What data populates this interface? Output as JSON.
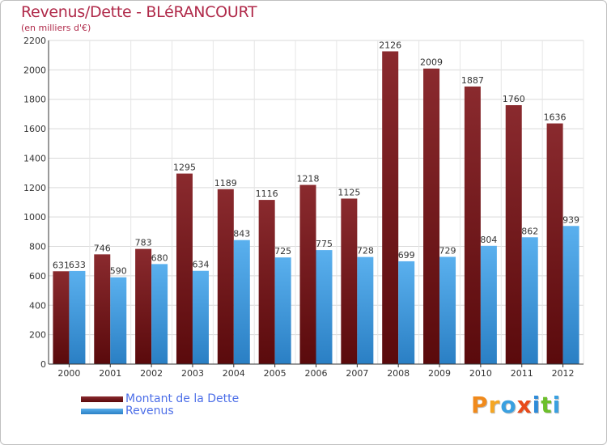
{
  "title": "Revenus/Dette - BLéRANCOURT",
  "subtitle": "(en milliers d'€)",
  "logo": {
    "text": "Proxiti",
    "colors": [
      "#f08a1c",
      "#f5a623",
      "#3aa0e0",
      "#e84a1a",
      "#2e8bd8",
      "#6cbf2a",
      "#3aa0e0"
    ]
  },
  "legend": [
    {
      "label": "Montant de la Dette",
      "color": "#7a1e22"
    },
    {
      "label": "Revenus",
      "color": "#3a9be0"
    }
  ],
  "chart_data": {
    "type": "bar",
    "categories": [
      "2000",
      "2001",
      "2002",
      "2003",
      "2004",
      "2005",
      "2006",
      "2007",
      "2008",
      "2009",
      "2010",
      "2011",
      "2012"
    ],
    "series": [
      {
        "name": "Montant de la Dette",
        "color": "#7a1e22",
        "values": [
          631,
          746,
          783,
          1295,
          1189,
          1116,
          1218,
          1125,
          2126,
          2009,
          1887,
          1760,
          1636
        ]
      },
      {
        "name": "Revenus",
        "color": "#3a9be0",
        "values": [
          633,
          590,
          680,
          634,
          843,
          725,
          775,
          728,
          699,
          729,
          804,
          862,
          939
        ]
      }
    ],
    "ylim": [
      0,
      2200
    ],
    "yticks": [
      0,
      200,
      400,
      600,
      800,
      1000,
      1200,
      1400,
      1600,
      1800,
      2000,
      2200
    ],
    "grid": true,
    "legend_position": "bottom-left"
  }
}
